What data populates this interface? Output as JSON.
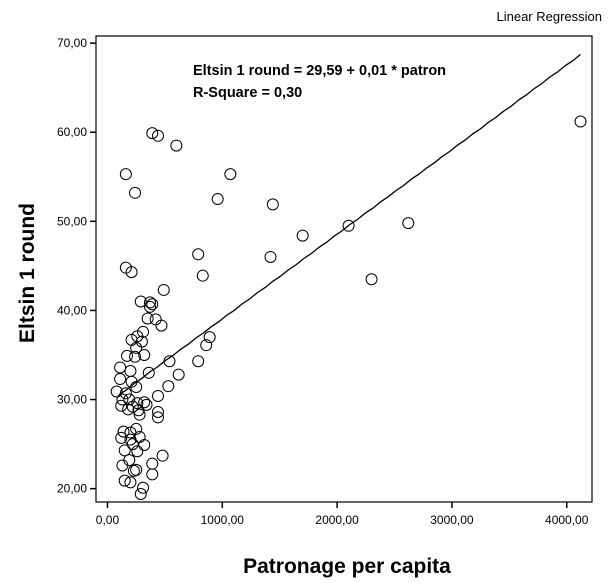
{
  "header": {
    "label": "Linear Regression"
  },
  "chart_data": {
    "type": "scatter",
    "title": "",
    "xlabel": "Patronage per capita",
    "ylabel": "Eltsin 1 round",
    "xlim": [
      -100,
      4220
    ],
    "ylim": [
      18.5,
      70.8
    ],
    "xticks": [
      0,
      1000,
      2000,
      3000,
      4000
    ],
    "yticks": [
      20,
      30,
      40,
      50,
      60,
      70
    ],
    "xtick_labels": [
      "0,00",
      "1000,00",
      "2000,00",
      "3000,00",
      "4000,00"
    ],
    "ytick_labels": [
      "20,00",
      "30,00",
      "40,00",
      "50,00",
      "60,00",
      "70,00"
    ],
    "grid": false,
    "legend": "none",
    "annotations": [
      "Eltsin 1 round = 29,59 + 0,01 * patron",
      "R-Square = 0,30"
    ],
    "regression": {
      "intercept": 29.59,
      "slope": 0.0095,
      "x_range": [
        100,
        4120
      ]
    },
    "points": [
      {
        "x": 4120,
        "y": 61.2
      },
      {
        "x": 2620,
        "y": 49.8
      },
      {
        "x": 2100,
        "y": 49.5
      },
      {
        "x": 2300,
        "y": 43.5
      },
      {
        "x": 1700,
        "y": 48.4
      },
      {
        "x": 1440,
        "y": 51.9
      },
      {
        "x": 1420,
        "y": 46.0
      },
      {
        "x": 1070,
        "y": 55.3
      },
      {
        "x": 960,
        "y": 52.5
      },
      {
        "x": 790,
        "y": 46.3
      },
      {
        "x": 830,
        "y": 43.9
      },
      {
        "x": 790,
        "y": 34.3
      },
      {
        "x": 890,
        "y": 37.0
      },
      {
        "x": 860,
        "y": 36.1
      },
      {
        "x": 600,
        "y": 58.5
      },
      {
        "x": 390,
        "y": 59.9
      },
      {
        "x": 440,
        "y": 59.6
      },
      {
        "x": 160,
        "y": 55.3
      },
      {
        "x": 240,
        "y": 53.2
      },
      {
        "x": 160,
        "y": 44.8
      },
      {
        "x": 210,
        "y": 44.3
      },
      {
        "x": 490,
        "y": 42.3
      },
      {
        "x": 290,
        "y": 41.0
      },
      {
        "x": 370,
        "y": 40.9
      },
      {
        "x": 390,
        "y": 40.7
      },
      {
        "x": 370,
        "y": 40.4
      },
      {
        "x": 350,
        "y": 39.1
      },
      {
        "x": 420,
        "y": 39.0
      },
      {
        "x": 470,
        "y": 38.3
      },
      {
        "x": 310,
        "y": 37.6
      },
      {
        "x": 260,
        "y": 37.1
      },
      {
        "x": 210,
        "y": 36.7
      },
      {
        "x": 300,
        "y": 36.5
      },
      {
        "x": 250,
        "y": 35.8
      },
      {
        "x": 170,
        "y": 34.9
      },
      {
        "x": 240,
        "y": 34.8
      },
      {
        "x": 320,
        "y": 35.0
      },
      {
        "x": 540,
        "y": 34.3
      },
      {
        "x": 110,
        "y": 33.6
      },
      {
        "x": 200,
        "y": 33.2
      },
      {
        "x": 360,
        "y": 33.0
      },
      {
        "x": 620,
        "y": 32.8
      },
      {
        "x": 110,
        "y": 32.3
      },
      {
        "x": 210,
        "y": 32.0
      },
      {
        "x": 250,
        "y": 31.4
      },
      {
        "x": 530,
        "y": 31.5
      },
      {
        "x": 80,
        "y": 30.9
      },
      {
        "x": 160,
        "y": 30.7
      },
      {
        "x": 190,
        "y": 30.0
      },
      {
        "x": 130,
        "y": 30.0
      },
      {
        "x": 440,
        "y": 30.4
      },
      {
        "x": 260,
        "y": 29.6
      },
      {
        "x": 320,
        "y": 29.7
      },
      {
        "x": 120,
        "y": 29.3
      },
      {
        "x": 220,
        "y": 29.2
      },
      {
        "x": 340,
        "y": 29.4
      },
      {
        "x": 180,
        "y": 28.9
      },
      {
        "x": 270,
        "y": 28.8
      },
      {
        "x": 440,
        "y": 28.6
      },
      {
        "x": 440,
        "y": 28.0
      },
      {
        "x": 280,
        "y": 28.3
      },
      {
        "x": 140,
        "y": 26.4
      },
      {
        "x": 200,
        "y": 26.3
      },
      {
        "x": 250,
        "y": 26.7
      },
      {
        "x": 120,
        "y": 25.7
      },
      {
        "x": 200,
        "y": 25.5
      },
      {
        "x": 280,
        "y": 25.8
      },
      {
        "x": 220,
        "y": 25.0
      },
      {
        "x": 320,
        "y": 24.9
      },
      {
        "x": 150,
        "y": 24.3
      },
      {
        "x": 260,
        "y": 24.2
      },
      {
        "x": 480,
        "y": 23.7
      },
      {
        "x": 190,
        "y": 23.2
      },
      {
        "x": 130,
        "y": 22.6
      },
      {
        "x": 250,
        "y": 22.1
      },
      {
        "x": 230,
        "y": 22.0
      },
      {
        "x": 390,
        "y": 22.8
      },
      {
        "x": 390,
        "y": 21.6
      },
      {
        "x": 150,
        "y": 20.9
      },
      {
        "x": 200,
        "y": 20.7
      },
      {
        "x": 310,
        "y": 20.1
      },
      {
        "x": 290,
        "y": 19.4
      }
    ]
  }
}
